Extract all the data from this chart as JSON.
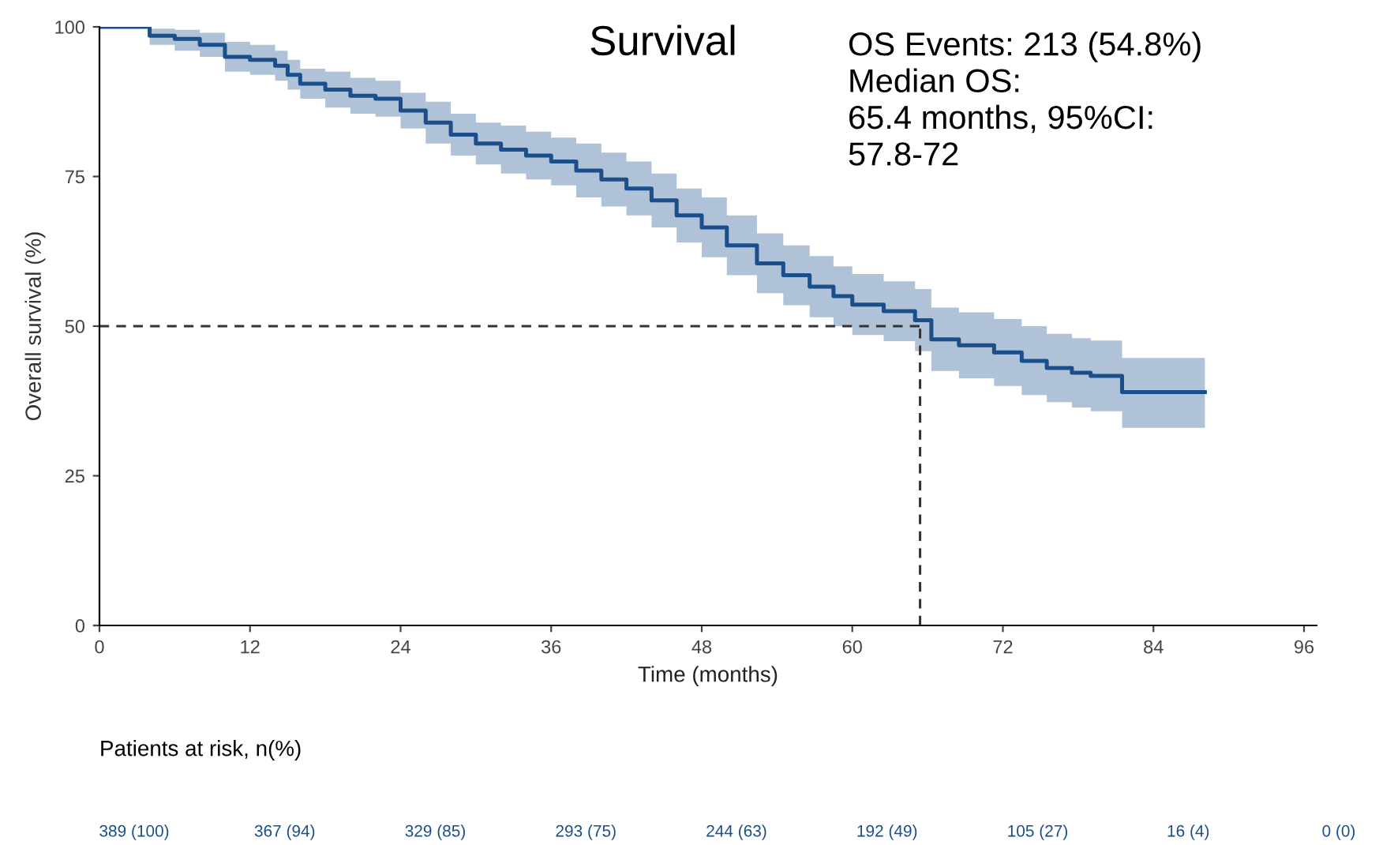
{
  "chart_data": {
    "type": "step",
    "title": "Survival",
    "xlabel": "Time (months)",
    "ylabel": "Overall survival (%)",
    "xlim": [
      0,
      97
    ],
    "ylim": [
      0,
      100
    ],
    "xticks": [
      0,
      12,
      24,
      36,
      48,
      60,
      72,
      84,
      96
    ],
    "yticks": [
      0,
      25,
      50,
      75,
      100
    ],
    "series": [
      {
        "color": "#1a4f8b",
        "x": [
          0,
          4,
          6,
          8,
          10,
          12,
          14,
          15,
          16,
          18,
          20,
          22,
          24,
          26,
          28,
          30,
          32,
          34,
          36,
          38,
          40,
          42,
          44,
          46,
          48,
          50,
          52.4,
          54.5,
          56.6,
          58.5,
          60,
          62.5,
          65,
          66.3,
          68.5,
          71.3,
          73.5,
          75.5,
          77.5,
          79,
          81.5,
          84,
          86,
          88.1
        ],
        "values": [
          100,
          98.5,
          98,
          97,
          95,
          94.5,
          93.5,
          92,
          90.5,
          89.5,
          88.5,
          88,
          86,
          84,
          82,
          80.5,
          79.5,
          78.5,
          77.5,
          76,
          74.5,
          73,
          71,
          68.5,
          66.5,
          63.5,
          60.5,
          58.5,
          56.6,
          55,
          53.6,
          52.5,
          51,
          47.8,
          46.8,
          45.6,
          44.2,
          43,
          42.2,
          41.7,
          39,
          39,
          39,
          39
        ],
        "lower": [
          100,
          97,
          96,
          95,
          92.5,
          92,
          91,
          89.5,
          88,
          86.5,
          85.5,
          85,
          83,
          80.5,
          78.5,
          77,
          75.5,
          74.5,
          73.5,
          71.5,
          70,
          68.5,
          66.5,
          64,
          61.5,
          58.5,
          55.5,
          53.5,
          51.5,
          50,
          48.5,
          47.5,
          45.8,
          42.5,
          41.3,
          40,
          38.5,
          37.3,
          36.4,
          35.8,
          33,
          33,
          33,
          33
        ],
        "upper": [
          100,
          99.7,
          99.5,
          99,
          97.5,
          97,
          96,
          94.5,
          93,
          92.5,
          91.5,
          91,
          89,
          87.5,
          85.5,
          84,
          83.5,
          82.5,
          81.5,
          80.5,
          79,
          77.5,
          75.5,
          73,
          71.5,
          68.5,
          65.5,
          63.5,
          61.7,
          60,
          58.7,
          57.5,
          56.2,
          53.1,
          52.3,
          51.2,
          50,
          48.7,
          48,
          47.6,
          44.7,
          44.7,
          44.7,
          44.7
        ]
      }
    ],
    "ref_lines": [
      {
        "axis": "y",
        "value": 50,
        "line_style": "dashed",
        "color": "#333333"
      },
      {
        "axis": "x",
        "value": 65.4,
        "line_style": "dashed",
        "color": "#333333"
      }
    ],
    "annotations": [
      "OS Events: 213 (54.8%)\nMedian OS:\n65.4 months, 95%CI:\n57.8-72",
      "Patients at risk, n(%)",
      "389 (100)",
      "367 (94)",
      "329 (85)",
      "293 (75)",
      "244 (63)",
      "192 (49)",
      "105 (27)",
      "16 (4)",
      "0 (0)"
    ]
  }
}
